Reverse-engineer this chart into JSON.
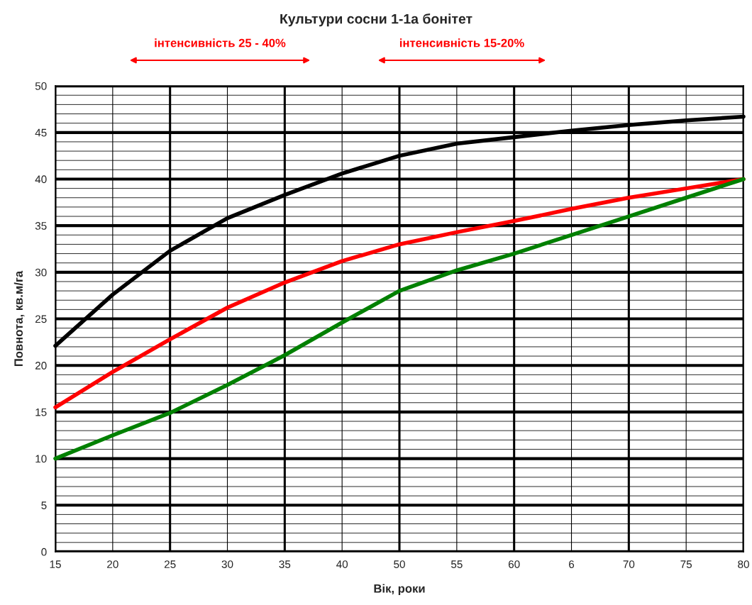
{
  "chart_data": {
    "type": "line",
    "title": "Культури сосни 1-1а бонітет",
    "xlabel": "Вік, роки",
    "ylabel": "Повнота, кв.м/га",
    "annotations": [
      "інтенсивність 25 - 40%",
      "інтенсивність 15-20%"
    ],
    "categories": [
      "15",
      "20",
      "25",
      "30",
      "35",
      "40",
      "50",
      "55",
      "60",
      "6",
      "70",
      "75",
      "80"
    ],
    "series": [
      {
        "color": "#000000",
        "values": [
          22.1,
          27.6,
          32.3,
          35.8,
          38.3,
          40.6,
          42.5,
          43.8,
          44.5,
          45.2,
          45.8,
          46.3,
          46.7
        ]
      },
      {
        "color": "#ff0000",
        "values": [
          15.5,
          19.3,
          22.8,
          26.2,
          28.9,
          31.2,
          33.0,
          34.3,
          35.5,
          36.8,
          38.0,
          39.0,
          40.0
        ]
      },
      {
        "color": "#008000",
        "values": [
          10.0,
          12.5,
          14.9,
          17.9,
          21.1,
          24.6,
          28.0,
          30.2,
          32.0,
          34.0,
          36.0,
          38.0,
          40.0
        ]
      }
    ],
    "ylim": [
      0,
      50
    ],
    "yticks": [
      0,
      5,
      10,
      15,
      20,
      25,
      30,
      35,
      40,
      45,
      50
    ],
    "grid": true,
    "marker": "none",
    "line_style": "solid"
  }
}
